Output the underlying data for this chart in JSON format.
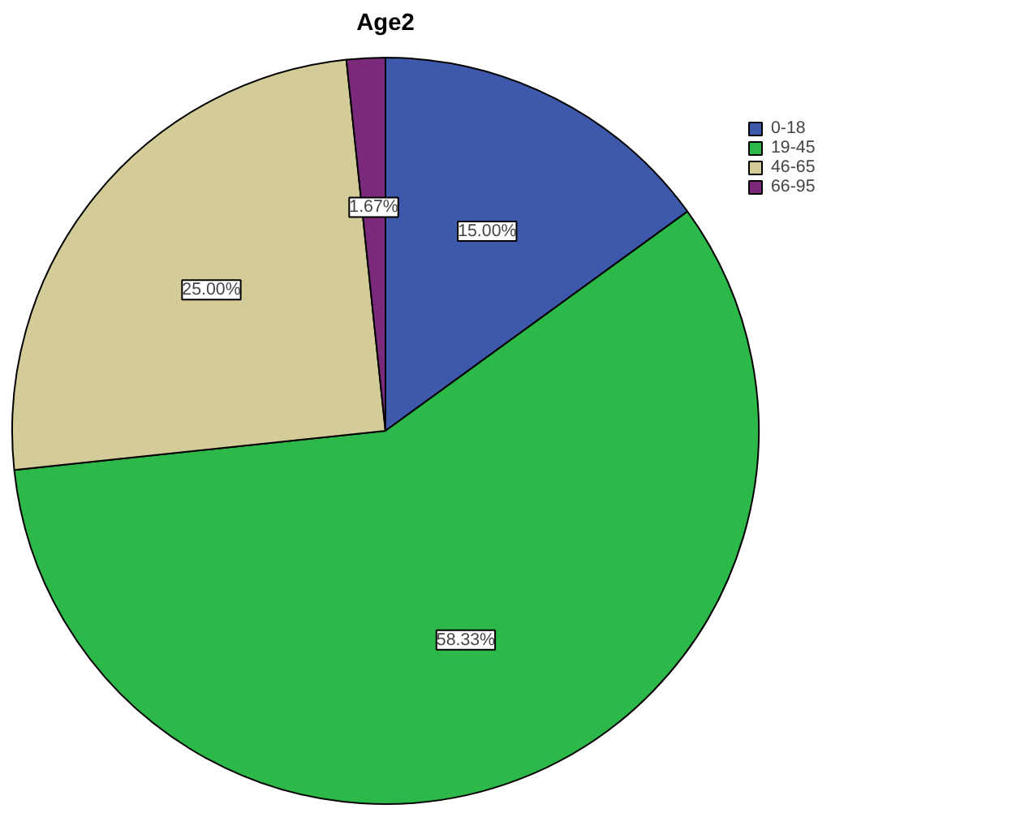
{
  "chart_data": {
    "type": "pie",
    "title": "Age2",
    "categories": [
      "0-18",
      "19-45",
      "46-65",
      "66-95"
    ],
    "values": [
      15.0,
      58.33,
      25.0,
      1.67
    ],
    "colors": [
      "#3e58ac",
      "#2db84a",
      "#d4cc98",
      "#7b2a7b"
    ],
    "value_labels": [
      "15.00%",
      "58.33%",
      "25.00%",
      "1.67%"
    ],
    "legend": "top right"
  }
}
